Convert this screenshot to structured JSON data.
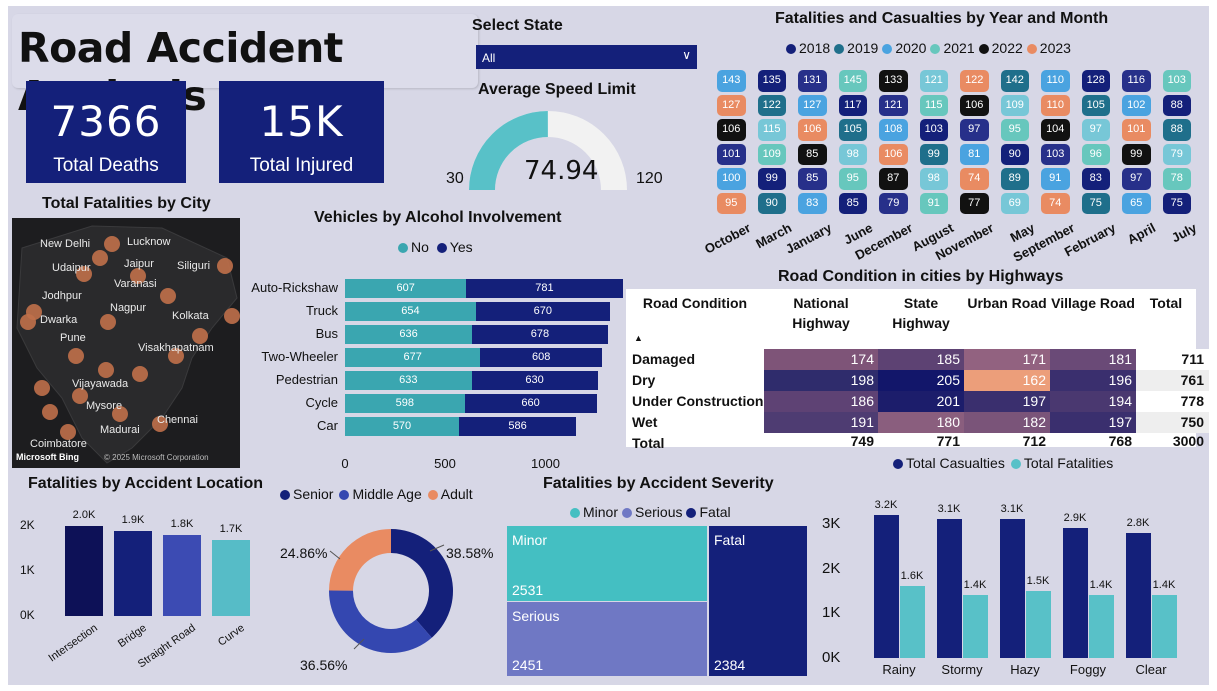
{
  "title": "Road Accident Analysis",
  "kpis": [
    {
      "value": "7366",
      "label": "Total Deaths"
    },
    {
      "value": "15K",
      "label": "Total Injured"
    }
  ],
  "slicer": {
    "title": "Select State",
    "value": "All"
  },
  "gauge": {
    "title": "Average Speed Limit",
    "value": "74.94",
    "min": "30",
    "max": "120",
    "fraction": 0.4993
  },
  "colors": {
    "navy": "#14207a",
    "teal": "#58c1c8",
    "panel": "#d7d7e6"
  },
  "map": {
    "title": "Total Fatalities by City",
    "cities": [
      "New Delhi",
      "Lucknow",
      "Udaipur",
      "Jaipur",
      "Siliguri",
      "Varanasi",
      "Jodhpur",
      "Nagpur",
      "Kolkata",
      "Dwarka",
      "Pune",
      "Visakhapatnam",
      "Vijayawada",
      "Mysore",
      "Chennai",
      "Madurai",
      "Coimbatore"
    ],
    "attribution_brand": "Microsoft Bing",
    "attribution": "© 2025 Microsoft Corporation"
  },
  "alcohol": {
    "title": "Vehicles by Alcohol Involvement",
    "legend": [
      "No",
      "Yes"
    ],
    "legend_colors": [
      "#3aa6b0",
      "#14207a"
    ],
    "categories": [
      "Auto-Rickshaw",
      "Truck",
      "Bus",
      "Two-Wheeler",
      "Pedestrian",
      "Cycle",
      "Car"
    ],
    "no": [
      607,
      654,
      636,
      677,
      633,
      598,
      570
    ],
    "yes": [
      781,
      670,
      678,
      608,
      630,
      660,
      586
    ],
    "no_labels": [
      "607",
      "654",
      "636",
      "677",
      "633",
      "598",
      "570"
    ],
    "yes_labels": [
      "781",
      "670",
      "678",
      "608",
      "630",
      "660",
      "586"
    ],
    "ticks": [
      "0",
      "500",
      "1000"
    ]
  },
  "months": {
    "title": "Fatalities and Casualties by Year and Month",
    "years": [
      "2018",
      "2019",
      "2020",
      "2021",
      "2022",
      "2023"
    ],
    "year_colors": [
      "#14207a",
      "#1f6f8b",
      "#4aa3e0",
      "#67c7bd",
      "#111111",
      "#e98b62"
    ],
    "labels": [
      "October",
      "March",
      "January",
      "June",
      "December",
      "August",
      "November",
      "May",
      "September",
      "February",
      "April",
      "July"
    ],
    "values": [
      [
        143,
        127,
        106,
        101,
        100,
        95
      ],
      [
        135,
        122,
        115,
        109,
        99,
        90
      ],
      [
        131,
        127,
        106,
        85,
        85,
        83
      ],
      [
        145,
        117,
        105,
        98,
        95,
        85
      ],
      [
        133,
        121,
        108,
        106,
        87,
        79
      ],
      [
        121,
        115,
        103,
        99,
        98,
        91
      ],
      [
        122,
        106,
        97,
        81,
        74,
        77
      ],
      [
        142,
        109,
        95,
        90,
        89,
        69
      ],
      [
        110,
        110,
        104,
        103,
        91,
        74
      ],
      [
        128,
        105,
        97,
        96,
        83,
        75
      ],
      [
        116,
        102,
        101,
        99,
        97,
        65
      ],
      [
        103,
        88,
        88,
        79,
        78,
        75
      ]
    ]
  },
  "road": {
    "title": "Road Condition in cities by Highways",
    "columns": [
      "Road Condition",
      "National Highway",
      "State Highway",
      "Urban Road",
      "Village Road",
      "Total"
    ],
    "sort_marker": "▲",
    "rows": [
      {
        "name": "Damaged",
        "vals": [
          "174",
          "185",
          "171",
          "181"
        ],
        "total": "711"
      },
      {
        "name": "Dry",
        "vals": [
          "198",
          "205",
          "162",
          "196"
        ],
        "total": "761"
      },
      {
        "name": "Under Construction",
        "vals": [
          "186",
          "201",
          "197",
          "194"
        ],
        "total": "778"
      },
      {
        "name": "Wet",
        "vals": [
          "191",
          "180",
          "182",
          "197"
        ],
        "total": "750"
      }
    ],
    "totals": {
      "name": "Total",
      "vals": [
        "749",
        "771",
        "712",
        "768"
      ],
      "total": "3000"
    },
    "cell_colors": [
      [
        "#7e5478",
        "#5d4273",
        "#926280",
        "#6a4a77"
      ],
      [
        "#2f2c6c",
        "#12166a",
        "#ec9e7a",
        "#3a2f6e"
      ],
      [
        "#5e4274",
        "#1c1d6b",
        "#3a2f6e",
        "#4a3870"
      ],
      [
        "#4e3c72",
        "#8a5e7e",
        "#7a5479",
        "#3a2f6e"
      ]
    ]
  },
  "location": {
    "title": "Fatalities by Accident Location",
    "categories": [
      "Intersection",
      "Bridge",
      "Straight Road",
      "Curve"
    ],
    "values": [
      2000,
      1900,
      1800,
      1700
    ],
    "labels": [
      "2.0K",
      "1.9K",
      "1.8K",
      "1.7K"
    ],
    "colors": [
      "#0d1157",
      "#14207a",
      "#3c4bb3",
      "#56bcc7"
    ],
    "ticks": [
      "2K",
      "1K",
      "0K"
    ]
  },
  "age": {
    "legend": [
      "Senior",
      "Middle Age",
      "Adult"
    ],
    "colors": [
      "#14207a",
      "#3447b0",
      "#e98b62"
    ],
    "values": [
      38.58,
      36.56,
      24.86
    ],
    "labels": [
      "38.58%",
      "36.56%",
      "24.86%"
    ]
  },
  "severity": {
    "title": "Fatalities by Accident Severity",
    "legend": [
      "Minor",
      "Serious",
      "Fatal"
    ],
    "colors": [
      "#44bfc2",
      "#6f78c4",
      "#14207a"
    ],
    "items": [
      {
        "name": "Minor",
        "value": "2531"
      },
      {
        "name": "Serious",
        "value": "2451"
      },
      {
        "name": "Fatal",
        "value": "2384"
      }
    ]
  },
  "weather": {
    "legend": [
      "Total Casualties",
      "Total Fatalities"
    ],
    "colors": [
      "#14207a",
      "#58c1c8"
    ],
    "categories": [
      "Rainy",
      "Stormy",
      "Hazy",
      "Foggy",
      "Clear"
    ],
    "casualties": [
      3200,
      3100,
      3100,
      2900,
      2800
    ],
    "fatalities": [
      1600,
      1400,
      1500,
      1400,
      1400
    ],
    "cas_labels": [
      "3.2K",
      "3.1K",
      "3.1K",
      "2.9K",
      "2.8K"
    ],
    "fat_labels": [
      "1.6K",
      "1.4K",
      "1.5K",
      "1.4K",
      "1.4K"
    ],
    "ticks": [
      "3K",
      "2K",
      "1K",
      "0K"
    ]
  }
}
